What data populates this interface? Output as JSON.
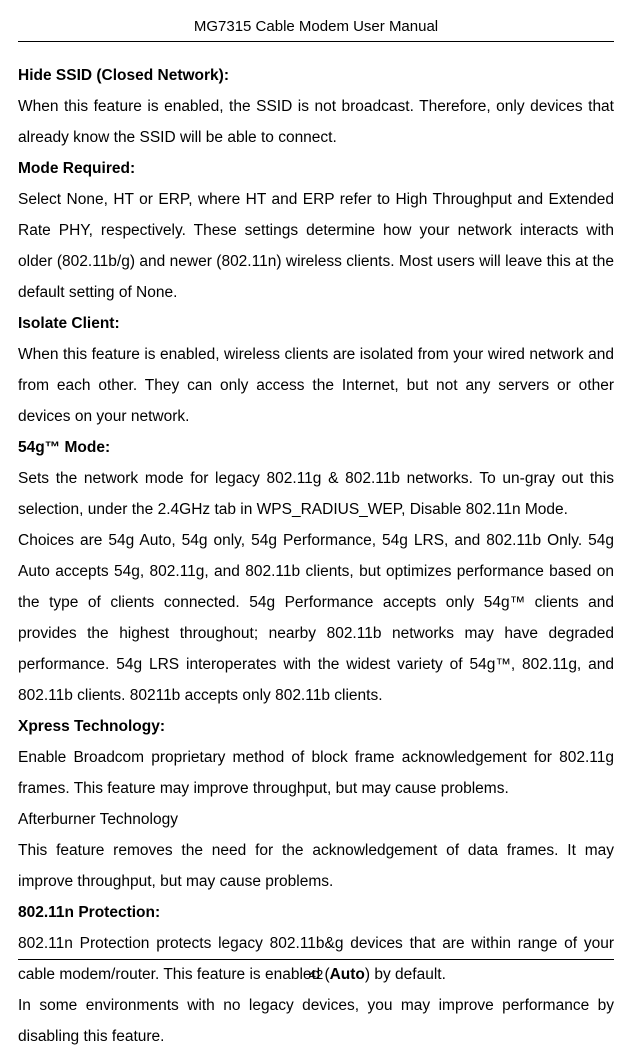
{
  "header": {
    "title": "MG7315 Cable Modem User Manual"
  },
  "sections": {
    "hideSsid": {
      "heading": "Hide SSID (Closed Network):",
      "text": "When this feature is enabled, the SSID is not broadcast. Therefore, only devices that already know the SSID will be able to connect."
    },
    "modeRequired": {
      "heading": "Mode Required:",
      "text": "Select None, HT or ERP, where HT and ERP refer to High Throughput and Extended Rate PHY, respectively. These settings determine how your network interacts with older (802.11b/g) and newer (802.11n) wireless clients. Most users will leave this at the default setting of None."
    },
    "isolateClient": {
      "heading": "Isolate Client:",
      "text": "When this feature is enabled, wireless clients are isolated from your wired network and from each other. They can only access the Internet, but not any servers or other devices on your network."
    },
    "mode54g": {
      "heading": "54g™ Mode:",
      "text1": "Sets the network mode for legacy 802.11g & 802.11b networks. To un-gray out this selection, under the 2.4GHz tab in WPS_RADIUS_WEP, Disable 802.11n Mode.",
      "text2": "Choices are 54g Auto, 54g only, 54g Performance, 54g LRS, and 802.11b Only. 54g Auto accepts 54g, 802.11g, and 802.11b clients, but optimizes performance based on the type of clients connected. 54g Performance accepts only 54g™ clients and provides the highest throughout; nearby 802.11b networks may have degraded performance. 54g LRS interoperates with the widest variety of 54g™, 802.11g, and 802.11b clients. 80211b accepts only 802.11b clients."
    },
    "xpress": {
      "heading": "Xpress Technology:",
      "text": "Enable Broadcom proprietary method of block frame acknowledgement for 802.11g frames. This feature may improve throughput, but may cause problems."
    },
    "afterburner": {
      "heading": "Afterburner Technology",
      "text": "This feature removes the need for the acknowledgement of data frames. It may improve throughput, but may cause problems."
    },
    "protection": {
      "heading": "802.11n Protection:",
      "text1_before": "802.11n Protection protects legacy 802.11b&g devices that are within range of your cable modem/router. This feature is enabled (",
      "text1_bold": "Auto",
      "text1_after": ") by default.",
      "text2": "In some environments with no legacy devices, you may improve performance by disabling this feature."
    }
  },
  "footer": {
    "pageNumber": "42"
  }
}
